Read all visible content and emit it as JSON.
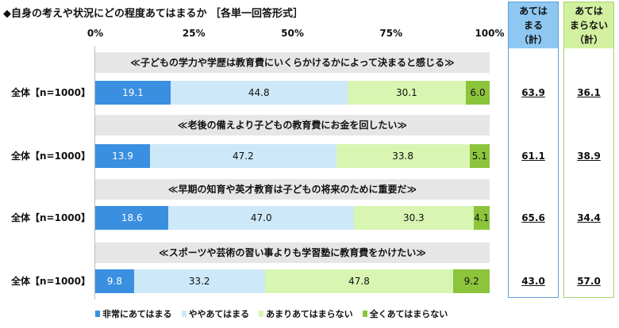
{
  "chart_data": {
    "type": "bar",
    "stacked": true,
    "orientation": "horizontal",
    "title": "◆自身の考えや状況にどの程度あてはまるか ［各単一回答形式］",
    "xlim": [
      0,
      100
    ],
    "ticks": [
      "0%",
      "25%",
      "50%",
      "75%",
      "100%"
    ],
    "legend_position": "bottom",
    "series_names": [
      "非常にあてはまる",
      "ややあてはまる",
      "あまりあてはまらない",
      "全くあてはまらない"
    ],
    "colors": [
      "#3a8fe0",
      "#cde8f8",
      "#d8f5b2",
      "#8cc43c"
    ],
    "text_colors": [
      "#ffffff",
      "#111111",
      "#111111",
      "#111111"
    ],
    "rows": [
      {
        "question": "≪子どもの学力や学歴は教育費にいくらかけるかによって決まると感じる≫",
        "label": "全体【n=1000】",
        "values": [
          19.1,
          44.8,
          30.1,
          6.0
        ],
        "labels": [
          "19.1",
          "44.8",
          "30.1",
          "6.0"
        ],
        "applies": "63.9",
        "not_applies": "36.1"
      },
      {
        "question": "≪老後の備えより子どもの教育費にお金を回したい≫",
        "label": "全体【n=1000】",
        "values": [
          13.9,
          47.2,
          33.8,
          5.1
        ],
        "labels": [
          "13.9",
          "47.2",
          "33.8",
          "5.1"
        ],
        "applies": "61.1",
        "not_applies": "38.9"
      },
      {
        "question": "≪早期の知育や英才教育は子どもの将来のために重要だ≫",
        "label": "全体【n=1000】",
        "values": [
          18.6,
          47.0,
          30.3,
          4.1
        ],
        "labels": [
          "18.6",
          "47.0",
          "30.3",
          "4.1"
        ],
        "applies": "65.6",
        "not_applies": "34.4"
      },
      {
        "question": "≪スポーツや芸術の習い事よりも学習塾に教育費をかけたい≫",
        "label": "全体【n=1000】",
        "values": [
          9.8,
          33.2,
          47.8,
          9.2
        ],
        "labels": [
          "9.8",
          "33.2",
          "47.8",
          "9.2"
        ],
        "applies": "43.0",
        "not_applies": "57.0"
      }
    ],
    "summary_headers": {
      "applies": "あては\nまる\n（計）",
      "not_applies": "あては\nまらない\n（計）"
    },
    "summary_colors": {
      "applies_bg": "#8ec8f2",
      "applies_border": "#5aa0dc",
      "not_applies_bg": "#d2f0a0",
      "not_applies_border": "#a8d46a"
    }
  }
}
